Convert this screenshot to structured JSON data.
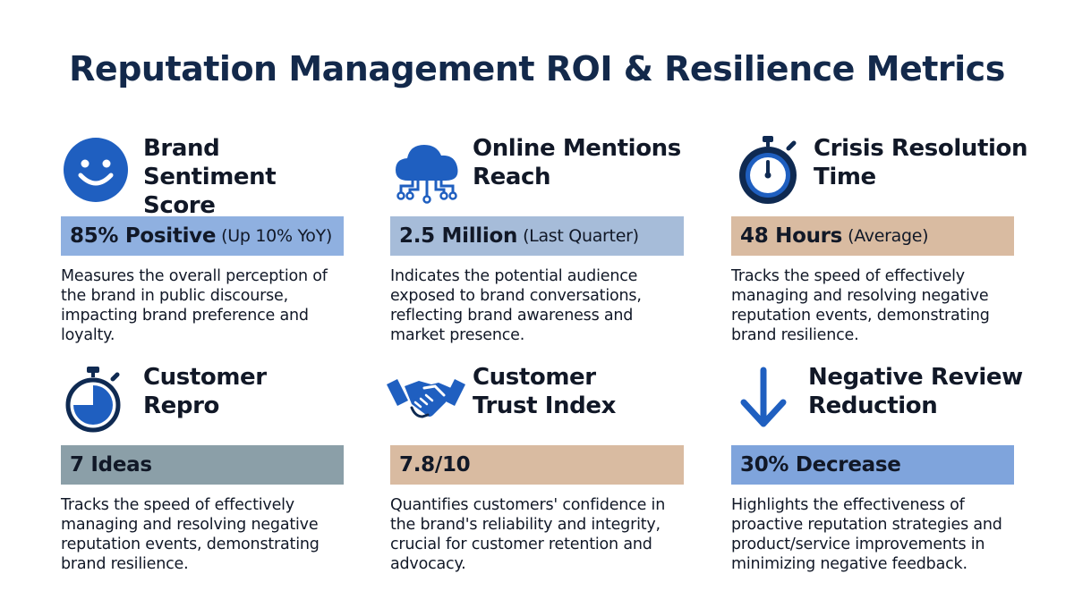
{
  "title": "Reputation Management ROI & Resilience Metrics",
  "colors": {
    "title": "#13294b",
    "icon_blue": "#1f5fc0",
    "icon_dark": "#0f2a52",
    "bar_light_blue": "#8fb0e0",
    "bar_steel_blue": "#a6bcd9",
    "bar_tan": "#d9bba1",
    "bar_slate": "#8b9fa8",
    "bar_blue": "#7fa4dc"
  },
  "cards": [
    {
      "icon": "smiley-face-icon",
      "title_lines": [
        "Brand Sentiment",
        "Score"
      ],
      "metric": "85% Positive",
      "metric_note": "(Up 10% YoY)",
      "bar_color": "#8fb0e0",
      "description_lines": [
        "Measures the overall perception of",
        "the brand in public discourse,",
        "impacting brand preference and",
        "loyalty."
      ]
    },
    {
      "icon": "cloud-network-icon",
      "title_lines": [
        "Online Mentions",
        "Reach"
      ],
      "metric": "2.5 Million",
      "metric_note": "(Last Quarter)",
      "bar_color": "#a6bcd9",
      "description_lines": [
        "Indicates the potential audience",
        "exposed to brand conversations,",
        "reflecting brand awareness and",
        "market presence."
      ]
    },
    {
      "icon": "stopwatch-icon",
      "title_lines": [
        "Crisis Resolution",
        "Time"
      ],
      "metric": "48 Hours",
      "metric_note": "(Average)",
      "bar_color": "#d9bba1",
      "description_lines": [
        "Tracks the speed of effectively",
        "managing and resolving negative",
        "reputation events, demonstrating",
        "brand resilience."
      ]
    },
    {
      "icon": "timer-pie-icon",
      "title_lines": [
        "Customer",
        "Repro"
      ],
      "metric": "7 Ideas",
      "metric_note": "",
      "bar_color": "#8b9fa8",
      "description_lines": [
        "Tracks the speed of effectively",
        "managing and resolving negative",
        "reputation events, demonstrating",
        "brand resilience."
      ]
    },
    {
      "icon": "handshake-icon",
      "title_lines": [
        "Customer",
        "Trust Index"
      ],
      "metric": "7.8/10",
      "metric_note": "",
      "bar_color": "#d9bba1",
      "description_lines": [
        "Quantifies customers' confidence in",
        "the brand's reliability and integrity,",
        "crucial for customer retention and",
        "advocacy."
      ]
    },
    {
      "icon": "arrow-down-icon",
      "title_lines": [
        "Negative Review",
        "Reduction"
      ],
      "metric": "30% Decrease",
      "metric_note": "",
      "bar_color": "#7fa4dc",
      "description_lines": [
        "Highlights the effectiveness of",
        "proactive reputation strategies and",
        "product/service improvements in",
        "minimizing negative feedback."
      ]
    }
  ]
}
